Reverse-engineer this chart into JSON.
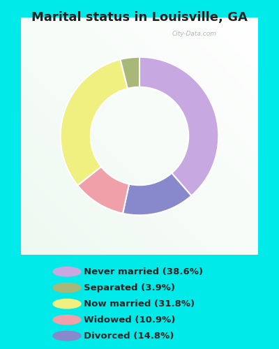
{
  "title": "Marital status in Louisville, GA",
  "categories": [
    "Never married",
    "Separated",
    "Now married",
    "Widowed",
    "Divorced"
  ],
  "values": [
    38.6,
    3.9,
    31.8,
    10.9,
    14.8
  ],
  "colors": [
    "#c8a8e0",
    "#a8b878",
    "#f0f080",
    "#f0a0a8",
    "#8888cc"
  ],
  "bg_outer": "#00eaea",
  "bg_chart_color1": "#c8e8d0",
  "bg_chart_color2": "#e8f8f0",
  "watermark": "City-Data.com",
  "legend_labels": [
    "Never married (38.6%)",
    "Separated (3.9%)",
    "Now married (31.8%)",
    "Widowed (10.9%)",
    "Divorced (14.8%)"
  ],
  "legend_colors": [
    "#c8a8e0",
    "#a8b878",
    "#f0f080",
    "#f0a0a8",
    "#8888cc"
  ],
  "title_fontsize": 13,
  "donut_width": 0.38,
  "wedge_order": [
    0,
    4,
    3,
    2,
    1
  ],
  "wedge_values_ordered": [
    38.6,
    14.8,
    10.9,
    31.8,
    3.9
  ],
  "wedge_colors_ordered": [
    "#c8a8e0",
    "#8888cc",
    "#f0a0a8",
    "#f0f080",
    "#a8b878"
  ]
}
